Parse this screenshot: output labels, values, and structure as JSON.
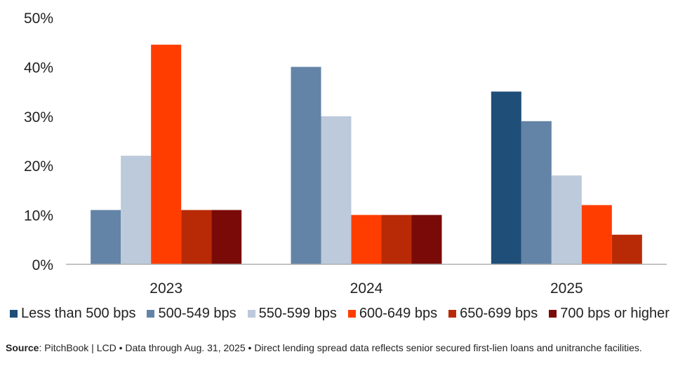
{
  "chart_data": {
    "type": "bar",
    "title": "",
    "xlabel": "",
    "ylabel": "",
    "ylim": [
      0,
      50
    ],
    "yticks": [
      "0%",
      "10%",
      "20%",
      "30%",
      "40%",
      "50%"
    ],
    "ytick_values": [
      0,
      10,
      20,
      30,
      40,
      50
    ],
    "categories": [
      "2023",
      "2024",
      "2025"
    ],
    "series": [
      {
        "name": "Less than 500 bps",
        "color": "#1f4e79",
        "values": [
          null,
          null,
          35
        ]
      },
      {
        "name": "500-549 bps",
        "color": "#6384a6",
        "values": [
          11,
          40,
          29
        ]
      },
      {
        "name": "550-599 bps",
        "color": "#bccadb",
        "values": [
          22,
          30,
          18
        ]
      },
      {
        "name": "600-649 bps",
        "color": "#ff3d00",
        "values": [
          44.5,
          10,
          12
        ]
      },
      {
        "name": "650-699 bps",
        "color": "#b82a06",
        "values": [
          11,
          10,
          6
        ]
      },
      {
        "name": "700 bps or higher",
        "color": "#7a0a08",
        "values": [
          11,
          10,
          null
        ]
      }
    ],
    "legend_position": "bottom",
    "grid": false
  },
  "source": {
    "label": "Source",
    "text": ": PitchBook | LCD • Data through Aug. 31, 2025 • Direct lending spread data reflects senior secured first-lien loans and unitranche facilities."
  }
}
